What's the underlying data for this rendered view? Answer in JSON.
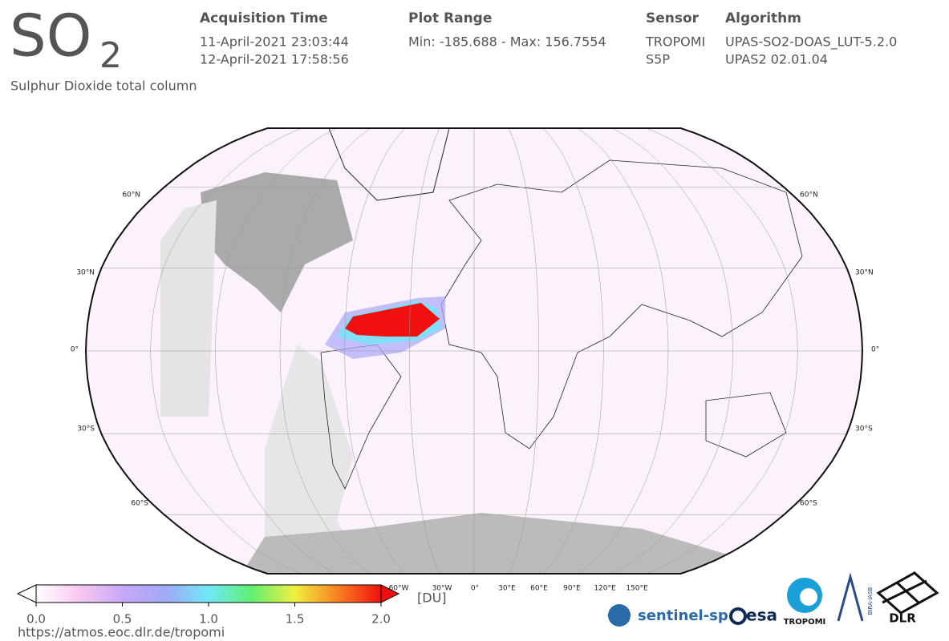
{
  "header": {
    "title": "SO",
    "title_subscript": "2",
    "subtitle": "Sulphur Dioxide total column",
    "acquisition_time": {
      "label": "Acquisition Time",
      "start": "11-April-2021 23:03:44",
      "end": "12-April-2021 17:58:56"
    },
    "plot_range": {
      "label": "Plot Range",
      "text": "Min: -185.688 - Max: 156.7554"
    },
    "sensor": {
      "label": "Sensor",
      "lines": [
        "TROPOMI",
        "S5P"
      ]
    },
    "algorithm": {
      "label": "Algorithm",
      "lines": [
        "UPAS-SO2-DOAS_LUT-5.2.0",
        "UPAS2 02.01.04"
      ]
    }
  },
  "map": {
    "lat_labels": [
      "60°N",
      "30°N",
      "0°",
      "30°S",
      "60°S"
    ],
    "lon_labels": [
      "60°W",
      "30°W",
      "0°",
      "30°E",
      "60°E",
      "90°E",
      "120°E",
      "150°E"
    ]
  },
  "colorbar": {
    "range": [
      0,
      2
    ],
    "unit": "[DU]",
    "ticks": [
      {
        "value": 0,
        "label": "0.0"
      },
      {
        "value": 0.5,
        "label": "0.5"
      },
      {
        "value": 1,
        "label": "1.0"
      },
      {
        "value": 1.5,
        "label": "1.5"
      },
      {
        "value": 2,
        "label": "2.0"
      }
    ],
    "colors": [
      "#ffffff",
      "#f8c8f0",
      "#c8a8f8",
      "#a0a8f8",
      "#70e8f8",
      "#60f070",
      "#f0f040",
      "#f88020",
      "#f01010"
    ]
  },
  "footer": {
    "url": "https://atmos.eoc.dlr.de/tropomi",
    "logos": {
      "sentinel": "sentinel-sp",
      "esa": "esa",
      "tropomi": "TROPOMI",
      "bira": "BIRA-IASB",
      "dlr": "DLR"
    }
  }
}
